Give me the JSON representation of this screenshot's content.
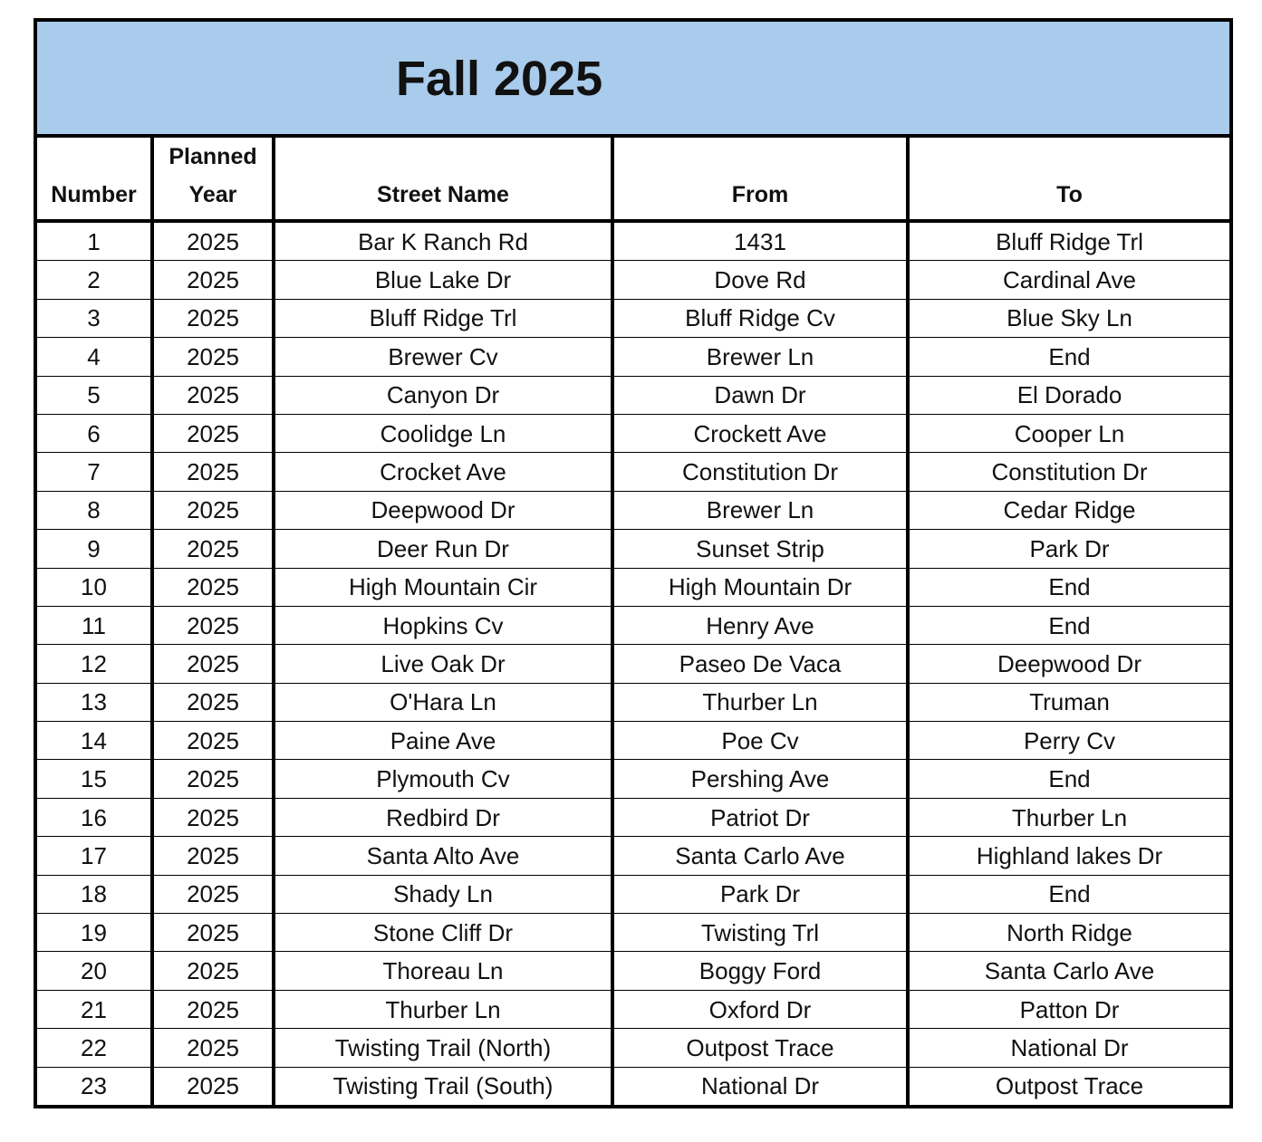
{
  "title": "Fall 2025",
  "columns": {
    "number": "Number",
    "year_line1": "Planned",
    "year_line2": "Year",
    "street": "Street Name",
    "from": "From",
    "to": "To"
  },
  "header_color": "#a9cbec",
  "rows": [
    [
      "1",
      "2025",
      "Bar K Ranch Rd",
      "1431",
      "Bluff Ridge Trl"
    ],
    [
      "2",
      "2025",
      "Blue Lake Dr",
      "Dove Rd",
      "Cardinal Ave"
    ],
    [
      "3",
      "2025",
      "Bluff Ridge Trl",
      "Bluff Ridge Cv",
      "Blue Sky Ln"
    ],
    [
      "4",
      "2025",
      "Brewer Cv",
      "Brewer Ln",
      "End"
    ],
    [
      "5",
      "2025",
      "Canyon Dr",
      "Dawn Dr",
      "El Dorado"
    ],
    [
      "6",
      "2025",
      "Coolidge Ln",
      "Crockett Ave",
      "Cooper Ln"
    ],
    [
      "7",
      "2025",
      "Crocket Ave",
      "Constitution Dr",
      "Constitution Dr"
    ],
    [
      "8",
      "2025",
      "Deepwood Dr",
      "Brewer Ln",
      "Cedar Ridge"
    ],
    [
      "9",
      "2025",
      "Deer Run Dr",
      "Sunset Strip",
      "Park Dr"
    ],
    [
      "10",
      "2025",
      "High Mountain Cir",
      "High Mountain Dr",
      "End"
    ],
    [
      "11",
      "2025",
      "Hopkins Cv",
      "Henry Ave",
      "End"
    ],
    [
      "12",
      "2025",
      "Live Oak Dr",
      "Paseo De Vaca",
      "Deepwood Dr"
    ],
    [
      "13",
      "2025",
      "O'Hara Ln",
      "Thurber Ln",
      "Truman"
    ],
    [
      "14",
      "2025",
      "Paine Ave",
      "Poe Cv",
      "Perry Cv"
    ],
    [
      "15",
      "2025",
      "Plymouth Cv",
      "Pershing Ave",
      "End"
    ],
    [
      "16",
      "2025",
      "Redbird Dr",
      "Patriot Dr",
      "Thurber Ln"
    ],
    [
      "17",
      "2025",
      "Santa Alto Ave",
      "Santa Carlo Ave",
      "Highland lakes Dr"
    ],
    [
      "18",
      "2025",
      "Shady Ln",
      "Park Dr",
      "End"
    ],
    [
      "19",
      "2025",
      "Stone Cliff Dr",
      "Twisting Trl",
      "North Ridge"
    ],
    [
      "20",
      "2025",
      "Thoreau Ln",
      "Boggy Ford",
      "Santa Carlo Ave"
    ],
    [
      "21",
      "2025",
      "Thurber Ln",
      "Oxford Dr",
      "Patton Dr"
    ],
    [
      "22",
      "2025",
      "Twisting Trail (North)",
      "Outpost Trace",
      "National Dr"
    ],
    [
      "23",
      "2025",
      "Twisting Trail (South)",
      "National Dr",
      "Outpost Trace"
    ]
  ]
}
